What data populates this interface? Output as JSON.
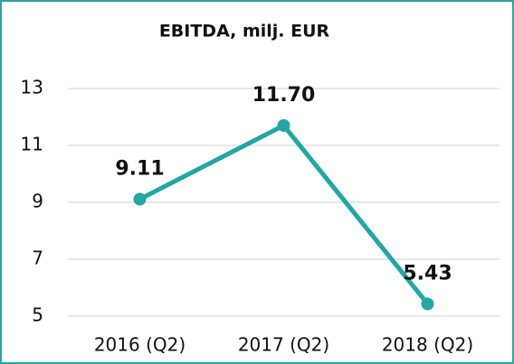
{
  "chart_data": {
    "type": "line",
    "title": "EBITDA, milj. EUR",
    "categories": [
      "2016 (Q2)",
      "2017 (Q2)",
      "2018 (Q2)"
    ],
    "series": [
      {
        "name": "EBITDA",
        "color": "#1fa8a6",
        "values": [
          9.11,
          11.7,
          5.43
        ],
        "value_labels": [
          "9.11",
          "11.70",
          "5.43"
        ]
      }
    ],
    "ylim": [
      5,
      13
    ],
    "yticks": [
      5,
      7,
      9,
      11,
      13
    ],
    "grid": true
  }
}
